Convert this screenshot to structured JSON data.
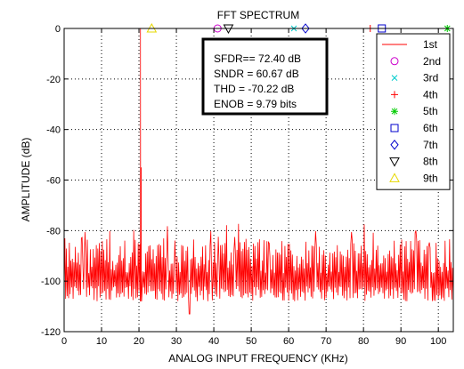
{
  "chart_data": {
    "type": "line",
    "title": "FFT SPECTRUM",
    "xlabel": "ANALOG INPUT FREQUENCY (KHz)",
    "ylabel": "AMPLITUDE (dB)",
    "xlim": [
      0,
      104
    ],
    "ylim": [
      -120,
      0
    ],
    "xticks": [
      0,
      10,
      20,
      30,
      40,
      50,
      60,
      70,
      80,
      90,
      100
    ],
    "yticks": [
      0,
      -20,
      -40,
      -60,
      -80,
      -100,
      -120
    ],
    "grid": true,
    "legend_position": "top-right",
    "metrics": [
      "SFDR== 72.40 dB",
      "SNDR = 60.67 dB",
      "THD = -70.22 dB",
      "ENOB = 9.79 bits"
    ],
    "spectrum": {
      "name": "1st",
      "color": "#ff0000",
      "fundamental_khz": 20.4,
      "fundamental_db": 0,
      "spur_db": -55,
      "noise_floor_top_db": -85,
      "noise_floor_bottom_db": -108,
      "min_db": -113
    },
    "harmonics": [
      {
        "name": "2nd",
        "x": 41.0,
        "y": 0,
        "marker": "circle",
        "color": "#cc00cc"
      },
      {
        "name": "3rd",
        "x": 61.4,
        "y": 0,
        "marker": "x",
        "color": "#00cccc"
      },
      {
        "name": "4th",
        "x": 81.8,
        "y": 0,
        "marker": "plus",
        "color": "#ff0000"
      },
      {
        "name": "5th",
        "x": 102.4,
        "y": 0,
        "marker": "asterisk",
        "color": "#00cc00"
      },
      {
        "name": "6th",
        "x": 84.9,
        "y": 0,
        "marker": "square",
        "color": "#0000cc"
      },
      {
        "name": "7th",
        "x": 64.5,
        "y": 0,
        "marker": "diamond",
        "color": "#0000cc"
      },
      {
        "name": "8th",
        "x": 43.9,
        "y": 0,
        "marker": "triangle-down",
        "color": "#000000"
      },
      {
        "name": "9th",
        "x": 23.4,
        "y": 0,
        "marker": "triangle-up",
        "color": "#e6d800"
      }
    ]
  }
}
